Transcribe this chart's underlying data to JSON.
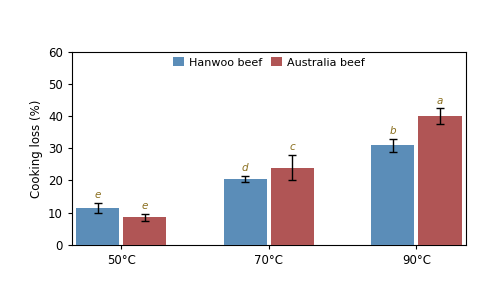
{
  "categories": [
    "50°C",
    "70°C",
    "90°C"
  ],
  "hanwoo_values": [
    11.5,
    20.5,
    31.0
  ],
  "australia_values": [
    8.5,
    24.0,
    40.0
  ],
  "hanwoo_errors": [
    1.5,
    1.0,
    2.0
  ],
  "australia_errors": [
    1.2,
    4.0,
    2.5
  ],
  "hanwoo_color": "#5B8DB8",
  "australia_color": "#B05555",
  "hanwoo_label": "Hanwoo beef",
  "australia_label": "Australia beef",
  "ylabel": "Cooking loss (%)",
  "ylim": [
    0,
    60
  ],
  "yticks": [
    0,
    10,
    20,
    30,
    40,
    50,
    60
  ],
  "letter_labels_hanwoo": [
    "e",
    "d",
    "b"
  ],
  "letter_labels_australia": [
    "e",
    "c",
    "a"
  ],
  "letter_color": "#8B7020",
  "bar_width": 0.22,
  "group_positions": [
    0.25,
    1.0,
    1.75
  ]
}
